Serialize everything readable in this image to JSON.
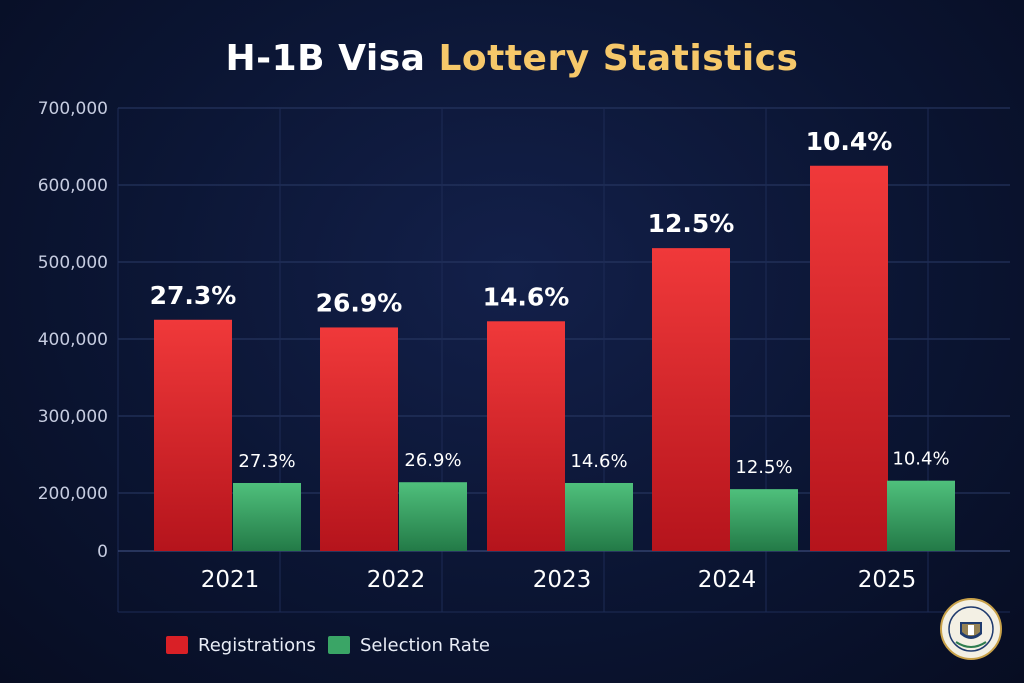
{
  "title": {
    "part1": "H-1B Visa",
    "part2": "Lottery Statistics"
  },
  "colors": {
    "registrations": "#e1262b",
    "selection_rate": "#3aa566",
    "title_accent": "#f6c86a"
  },
  "chart_data": {
    "type": "bar",
    "title": "H-1B Visa Lottery Statistics",
    "categories": [
      "2021",
      "2022",
      "2023",
      "2024",
      "2025"
    ],
    "y_ticks": [
      "0",
      "200,000",
      "300,000",
      "400,000",
      "500,000",
      "600,000",
      "700,000"
    ],
    "series": [
      {
        "name": "Registrations",
        "values": [
          425000,
          415000,
          423000,
          518000,
          625000
        ],
        "labels": [
          "27.3%",
          "26.9%",
          "14.6%",
          "12.5%",
          "10.4%"
        ]
      },
      {
        "name": "Selection Rate",
        "values": [
          213000,
          214000,
          213000,
          205000,
          216000
        ],
        "labels": [
          "27.3%",
          "26.9%",
          "14.6%",
          "12.5%",
          "10.4%"
        ]
      }
    ],
    "grid": true,
    "legend": "bottom-left"
  },
  "seal": {
    "icon": "government-seal-icon"
  }
}
